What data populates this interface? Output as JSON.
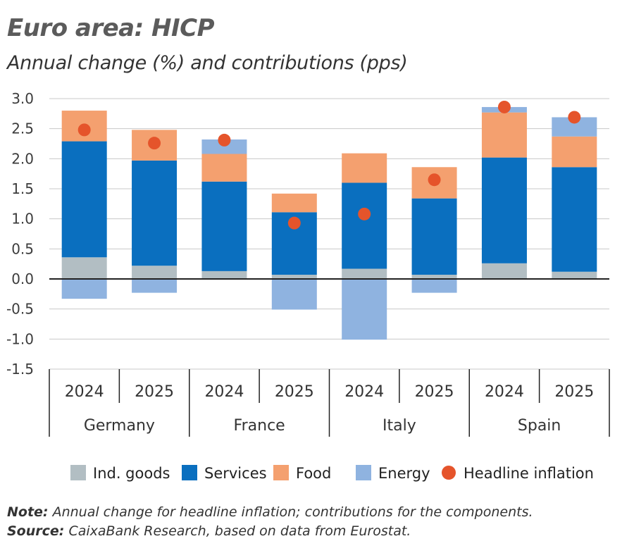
{
  "title": "Euro area: HICP",
  "subtitle": "Annual change (%) and contributions (pps)",
  "note_label": "Note:",
  "note_text": "Annual change for headline inflation; contributions for the components.",
  "source_label": "Source:",
  "source_text": "CaixaBank Research, based on data from Eurostat.",
  "colors": {
    "ind_goods": "#b2bec3",
    "services": "#0a6fbf",
    "food": "#f4a06f",
    "energy": "#8fb3e0",
    "headline": "#e5542b",
    "grid": "#c8c8c8",
    "axis": "#222222"
  },
  "chart_data": {
    "type": "bar",
    "stacked": true,
    "categories": [
      "2024",
      "2025",
      "2024",
      "2025",
      "2024",
      "2025",
      "2024",
      "2025"
    ],
    "groups": [
      {
        "label": "Germany",
        "span": 2
      },
      {
        "label": "France",
        "span": 2
      },
      {
        "label": "Italy",
        "span": 2
      },
      {
        "label": "Spain",
        "span": 2
      }
    ],
    "series": [
      {
        "key": "ind_goods",
        "name": "Ind. goods",
        "values": [
          0.36,
          0.22,
          0.13,
          0.07,
          0.17,
          0.07,
          0.26,
          0.12
        ]
      },
      {
        "key": "services",
        "name": "Services",
        "values": [
          1.93,
          1.75,
          1.49,
          1.04,
          1.43,
          1.27,
          1.76,
          1.74
        ]
      },
      {
        "key": "food",
        "name": "Food",
        "values": [
          0.51,
          0.51,
          0.46,
          0.31,
          0.49,
          0.52,
          0.75,
          0.51
        ]
      },
      {
        "key": "energy",
        "name": "Energy",
        "values": [
          -0.33,
          -0.23,
          0.24,
          -0.51,
          -1.01,
          -0.23,
          0.09,
          0.32
        ]
      }
    ],
    "headline": {
      "key": "headline",
      "name": "Headline inflation",
      "values": [
        2.48,
        2.26,
        2.31,
        0.93,
        1.08,
        1.65,
        2.86,
        2.69
      ]
    },
    "ylim": [
      -1.5,
      3.0
    ],
    "yticks": [
      "3.0",
      "2.5",
      "2.0",
      "1.5",
      "1.0",
      "0.5",
      "0.0",
      "-0.5",
      "-1.0",
      "-1.5"
    ],
    "grid": true,
    "legend_position": "bottom"
  }
}
